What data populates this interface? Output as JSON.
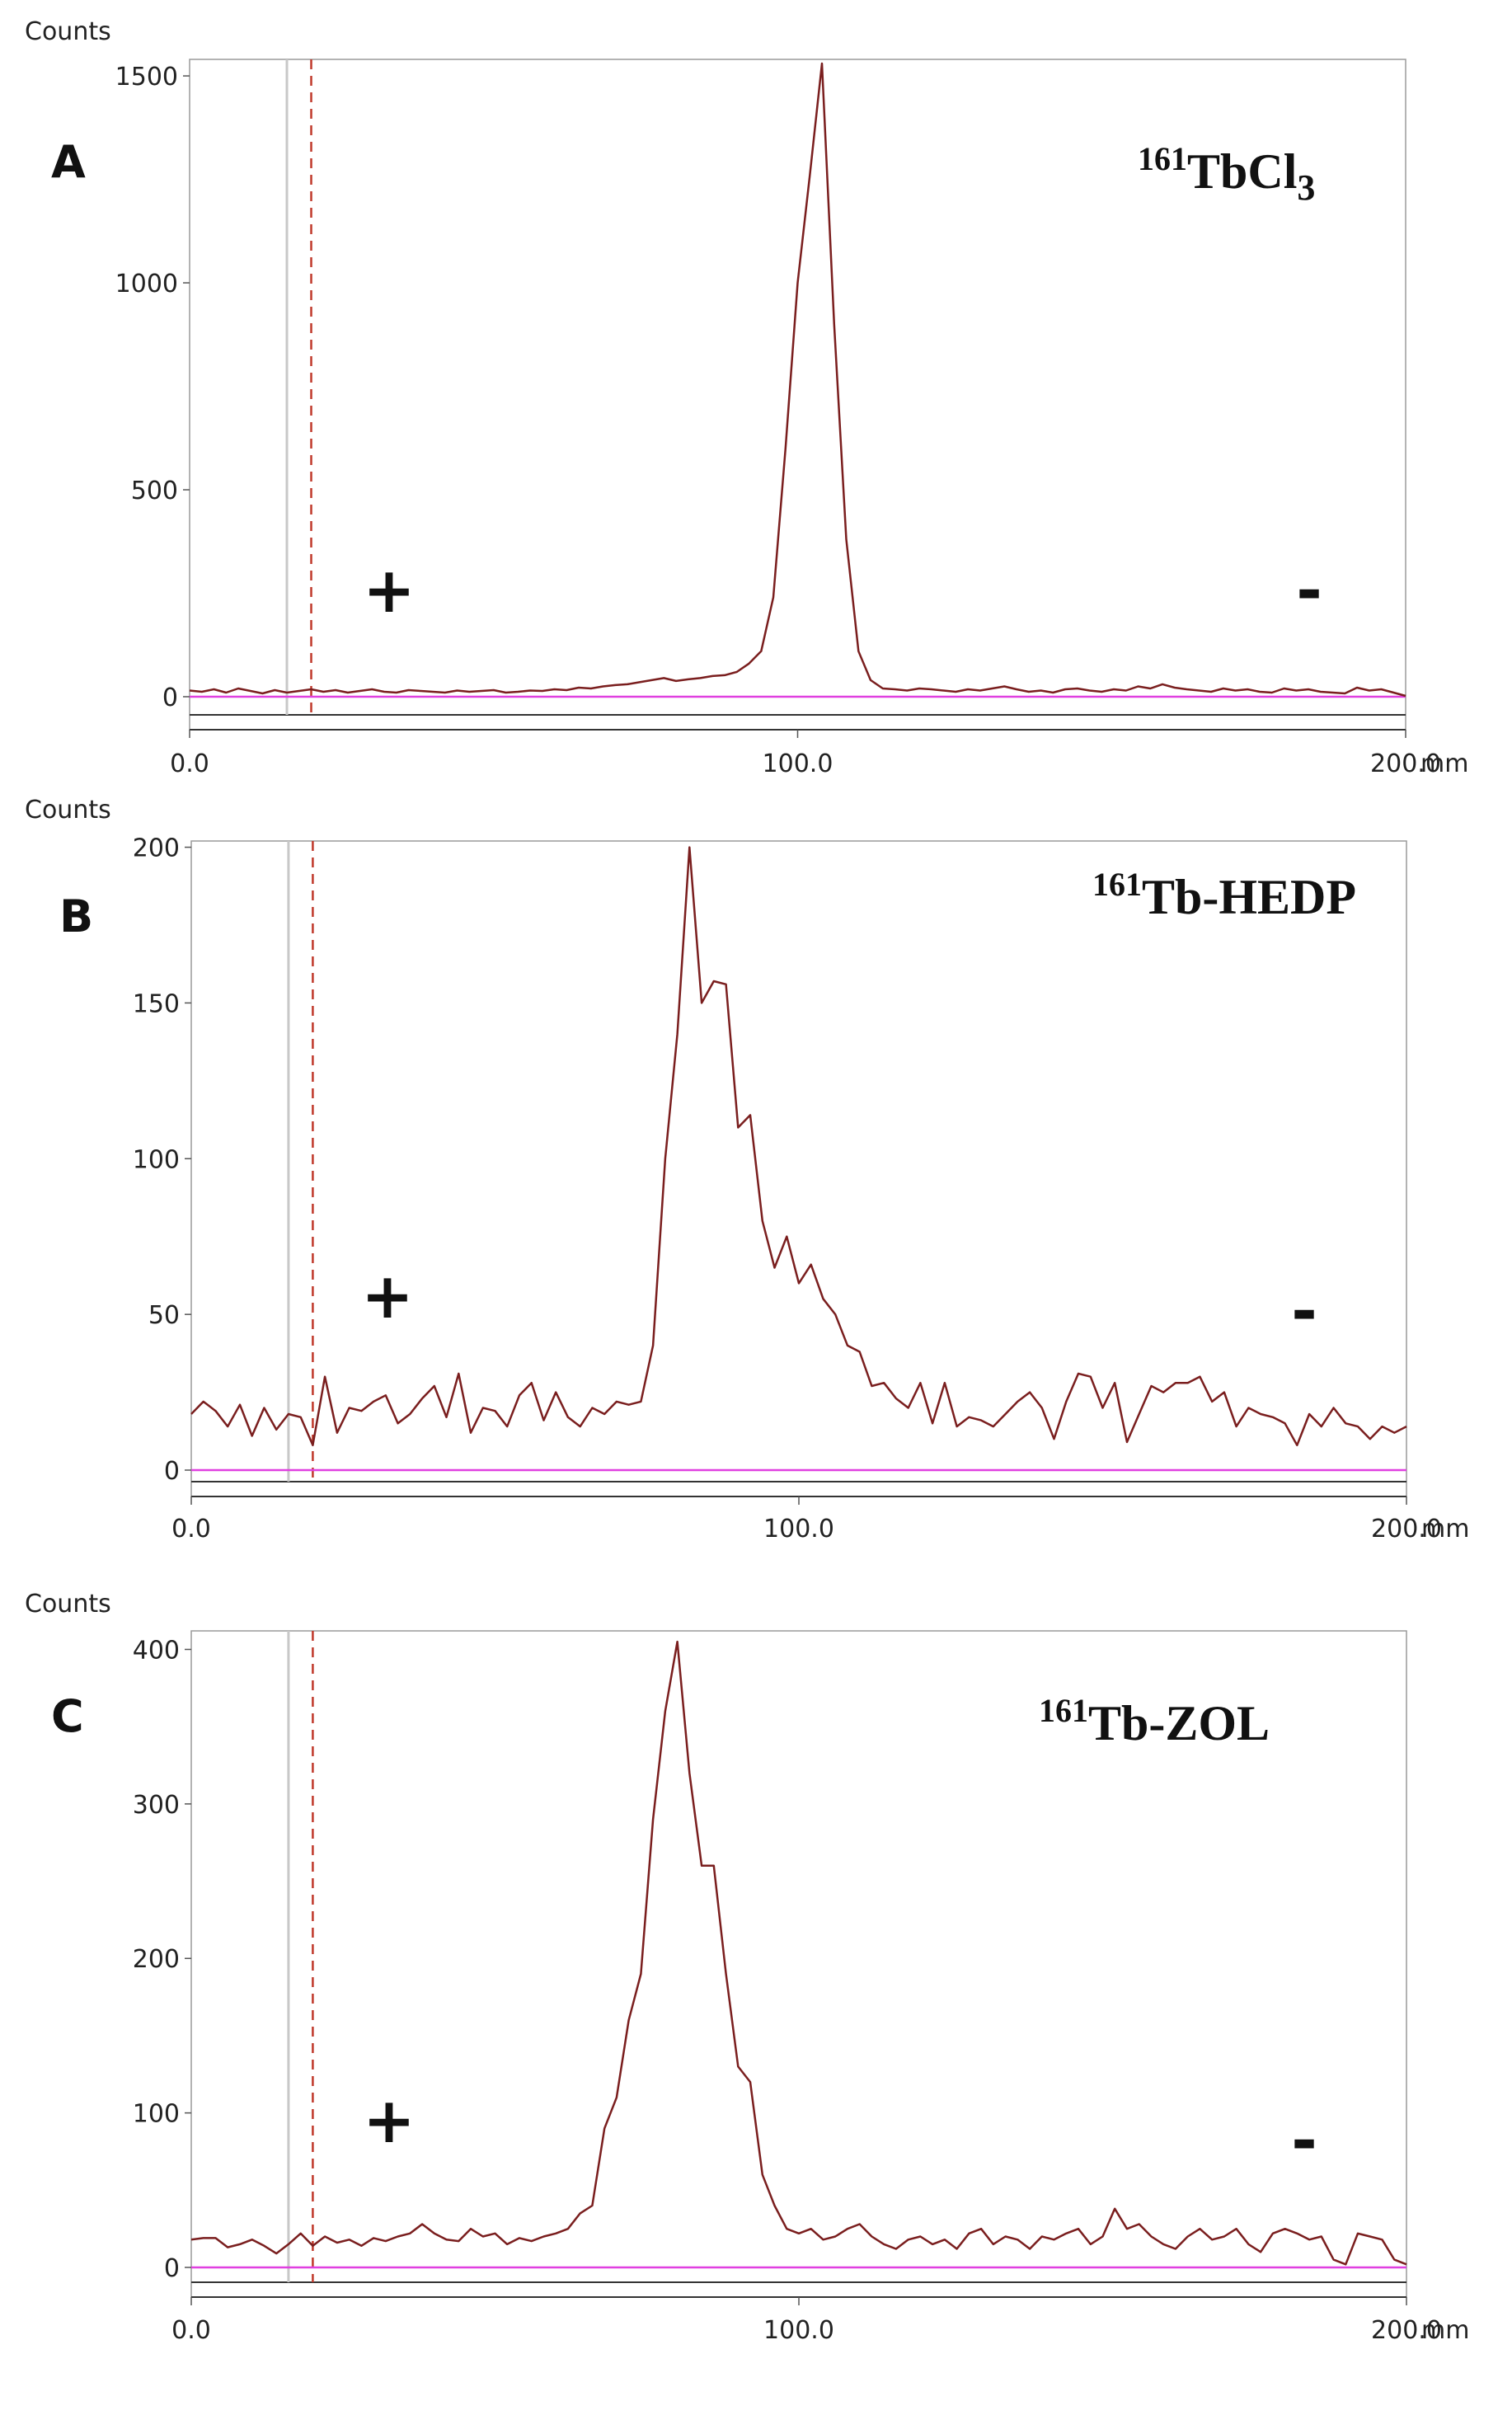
{
  "figure": {
    "x_unit": "mm",
    "y_label": "Counts"
  },
  "colors": {
    "trace": "#7a1e1e",
    "baseline": "#e040e0",
    "frame": "#333333",
    "origin_line": "#c8c8c8",
    "start_marker": "#c0392b"
  },
  "chart_data": [
    {
      "type": "line",
      "panel_label": "A",
      "title_sup": "161",
      "title_main": "TbCl",
      "title_sub": "3",
      "xlabel": "mm",
      "ylabel": "Counts",
      "xlim": [
        0,
        200
      ],
      "ylim": [
        -75,
        1540
      ],
      "x_ticks": [
        0,
        100,
        200
      ],
      "x_tick_labels": [
        "0.0",
        "100.0",
        "200.0"
      ],
      "y_ticks": [
        0,
        500,
        1000,
        1500
      ],
      "y_tick_labels": [
        "0",
        "500",
        "1000",
        "1500"
      ],
      "origin_mm": 16,
      "start_mm": 20,
      "plus_label": "+",
      "minus_label": "-",
      "x": [
        0,
        2,
        4,
        6,
        8,
        10,
        12,
        14,
        16,
        18,
        20,
        22,
        24,
        26,
        28,
        30,
        32,
        34,
        36,
        38,
        40,
        42,
        44,
        46,
        48,
        50,
        52,
        54,
        56,
        58,
        60,
        62,
        64,
        66,
        68,
        70,
        72,
        74,
        76,
        78,
        80,
        82,
        84,
        86,
        88,
        90,
        92,
        94,
        96,
        98,
        100,
        102,
        104,
        106,
        108,
        110,
        112,
        114,
        116,
        118,
        120,
        122,
        124,
        126,
        128,
        130,
        132,
        134,
        136,
        138,
        140,
        142,
        144,
        146,
        148,
        150,
        152,
        154,
        156,
        158,
        160,
        162,
        164,
        166,
        168,
        170,
        172,
        174,
        176,
        178,
        180,
        182,
        184,
        186,
        188,
        190,
        192,
        194,
        196,
        198,
        200
      ],
      "values": [
        15,
        12,
        18,
        10,
        20,
        14,
        8,
        16,
        10,
        14,
        18,
        12,
        16,
        10,
        14,
        18,
        12,
        10,
        16,
        14,
        12,
        10,
        15,
        12,
        14,
        16,
        10,
        12,
        15,
        14,
        18,
        16,
        22,
        20,
        25,
        28,
        30,
        35,
        40,
        45,
        38,
        42,
        45,
        50,
        52,
        60,
        80,
        110,
        240,
        600,
        1000,
        1260,
        1530,
        900,
        380,
        110,
        40,
        20,
        18,
        15,
        20,
        18,
        15,
        12,
        18,
        15,
        20,
        25,
        18,
        12,
        15,
        10,
        18,
        20,
        15,
        12,
        18,
        15,
        25,
        20,
        30,
        22,
        18,
        15,
        12,
        20,
        15,
        18,
        12,
        10,
        20,
        15,
        18,
        12,
        10,
        8,
        22,
        15,
        18,
        10,
        2
      ]
    },
    {
      "type": "line",
      "panel_label": "B",
      "title_sup": "161",
      "title_main": "Tb-HEDP",
      "title_sub": "",
      "xlabel": "mm",
      "ylabel": "Counts",
      "xlim": [
        0,
        200
      ],
      "ylim": [
        -10,
        202
      ],
      "x_ticks": [
        0,
        100,
        200
      ],
      "x_tick_labels": [
        "0.0",
        "100.0",
        "200.0"
      ],
      "y_ticks": [
        0,
        50,
        100,
        150,
        200
      ],
      "y_tick_labels": [
        "0",
        "50",
        "100",
        "150",
        "200"
      ],
      "origin_mm": 16,
      "start_mm": 20,
      "plus_label": "+",
      "minus_label": "-",
      "x": [
        0,
        2,
        4,
        6,
        8,
        10,
        12,
        14,
        16,
        18,
        20,
        22,
        24,
        26,
        28,
        30,
        32,
        34,
        36,
        38,
        40,
        42,
        44,
        46,
        48,
        50,
        52,
        54,
        56,
        58,
        60,
        62,
        64,
        66,
        68,
        70,
        72,
        74,
        76,
        78,
        80,
        82,
        84,
        86,
        88,
        90,
        92,
        94,
        96,
        98,
        100,
        102,
        104,
        106,
        108,
        110,
        112,
        114,
        116,
        118,
        120,
        122,
        124,
        126,
        128,
        130,
        132,
        134,
        136,
        138,
        140,
        142,
        144,
        146,
        148,
        150,
        152,
        154,
        156,
        158,
        160,
        162,
        164,
        166,
        168,
        170,
        172,
        174,
        176,
        178,
        180,
        182,
        184,
        186,
        188,
        190,
        192,
        194,
        196,
        198,
        200
      ],
      "values": [
        18,
        22,
        19,
        14,
        21,
        11,
        20,
        13,
        18,
        17,
        8,
        30,
        12,
        20,
        19,
        22,
        24,
        15,
        18,
        23,
        27,
        17,
        31,
        12,
        20,
        19,
        14,
        24,
        28,
        16,
        25,
        17,
        14,
        20,
        18,
        22,
        21,
        22,
        40,
        100,
        140,
        200,
        150,
        157,
        156,
        110,
        114,
        80,
        65,
        75,
        60,
        66,
        55,
        50,
        40,
        38,
        27,
        28,
        23,
        20,
        28,
        15,
        28,
        14,
        17,
        16,
        14,
        18,
        22,
        25,
        20,
        10,
        22,
        31,
        30,
        20,
        28,
        9,
        18,
        27,
        25,
        28,
        28,
        30,
        22,
        25,
        14,
        20,
        18,
        17,
        15,
        8,
        18,
        14,
        20,
        15,
        14,
        10,
        14,
        12,
        14
      ]
    },
    {
      "type": "line",
      "panel_label": "C",
      "title_sup": "161",
      "title_main": "Tb-ZOL",
      "title_sub": "",
      "xlabel": "mm",
      "ylabel": "Counts",
      "xlim": [
        0,
        200
      ],
      "ylim": [
        -20,
        412
      ],
      "x_ticks": [
        0,
        100,
        200
      ],
      "x_tick_labels": [
        "0.0",
        "100.0",
        "200.0"
      ],
      "y_ticks": [
        0,
        100,
        200,
        300,
        400
      ],
      "y_tick_labels": [
        "0",
        "100",
        "200",
        "300",
        "400"
      ],
      "origin_mm": 16,
      "start_mm": 20,
      "plus_label": "+",
      "minus_label": "-",
      "x": [
        0,
        2,
        4,
        6,
        8,
        10,
        12,
        14,
        16,
        18,
        20,
        22,
        24,
        26,
        28,
        30,
        32,
        34,
        36,
        38,
        40,
        42,
        44,
        46,
        48,
        50,
        52,
        54,
        56,
        58,
        60,
        62,
        64,
        66,
        68,
        70,
        72,
        74,
        76,
        78,
        80,
        82,
        84,
        86,
        88,
        90,
        92,
        94,
        96,
        98,
        100,
        102,
        104,
        106,
        108,
        110,
        112,
        114,
        116,
        118,
        120,
        122,
        124,
        126,
        128,
        130,
        132,
        134,
        136,
        138,
        140,
        142,
        144,
        146,
        148,
        150,
        152,
        154,
        156,
        158,
        160,
        162,
        164,
        166,
        168,
        170,
        172,
        174,
        176,
        178,
        180,
        182,
        184,
        186,
        188,
        190,
        192,
        194,
        196,
        198,
        200
      ],
      "values": [
        18,
        19,
        19,
        13,
        15,
        18,
        14,
        9,
        15,
        22,
        14,
        20,
        16,
        18,
        14,
        19,
        17,
        20,
        22,
        28,
        22,
        18,
        17,
        25,
        20,
        22,
        15,
        19,
        17,
        20,
        22,
        25,
        35,
        40,
        90,
        110,
        160,
        190,
        290,
        360,
        405,
        320,
        260,
        260,
        190,
        130,
        120,
        60,
        40,
        25,
        22,
        25,
        18,
        20,
        25,
        28,
        20,
        15,
        12,
        18,
        20,
        15,
        18,
        12,
        22,
        25,
        15,
        20,
        18,
        12,
        20,
        18,
        22,
        25,
        15,
        20,
        38,
        25,
        28,
        20,
        15,
        12,
        20,
        25,
        18,
        20,
        25,
        15,
        10,
        22,
        25,
        22,
        18,
        20,
        5,
        2,
        22,
        20,
        18,
        5,
        2
      ]
    }
  ]
}
